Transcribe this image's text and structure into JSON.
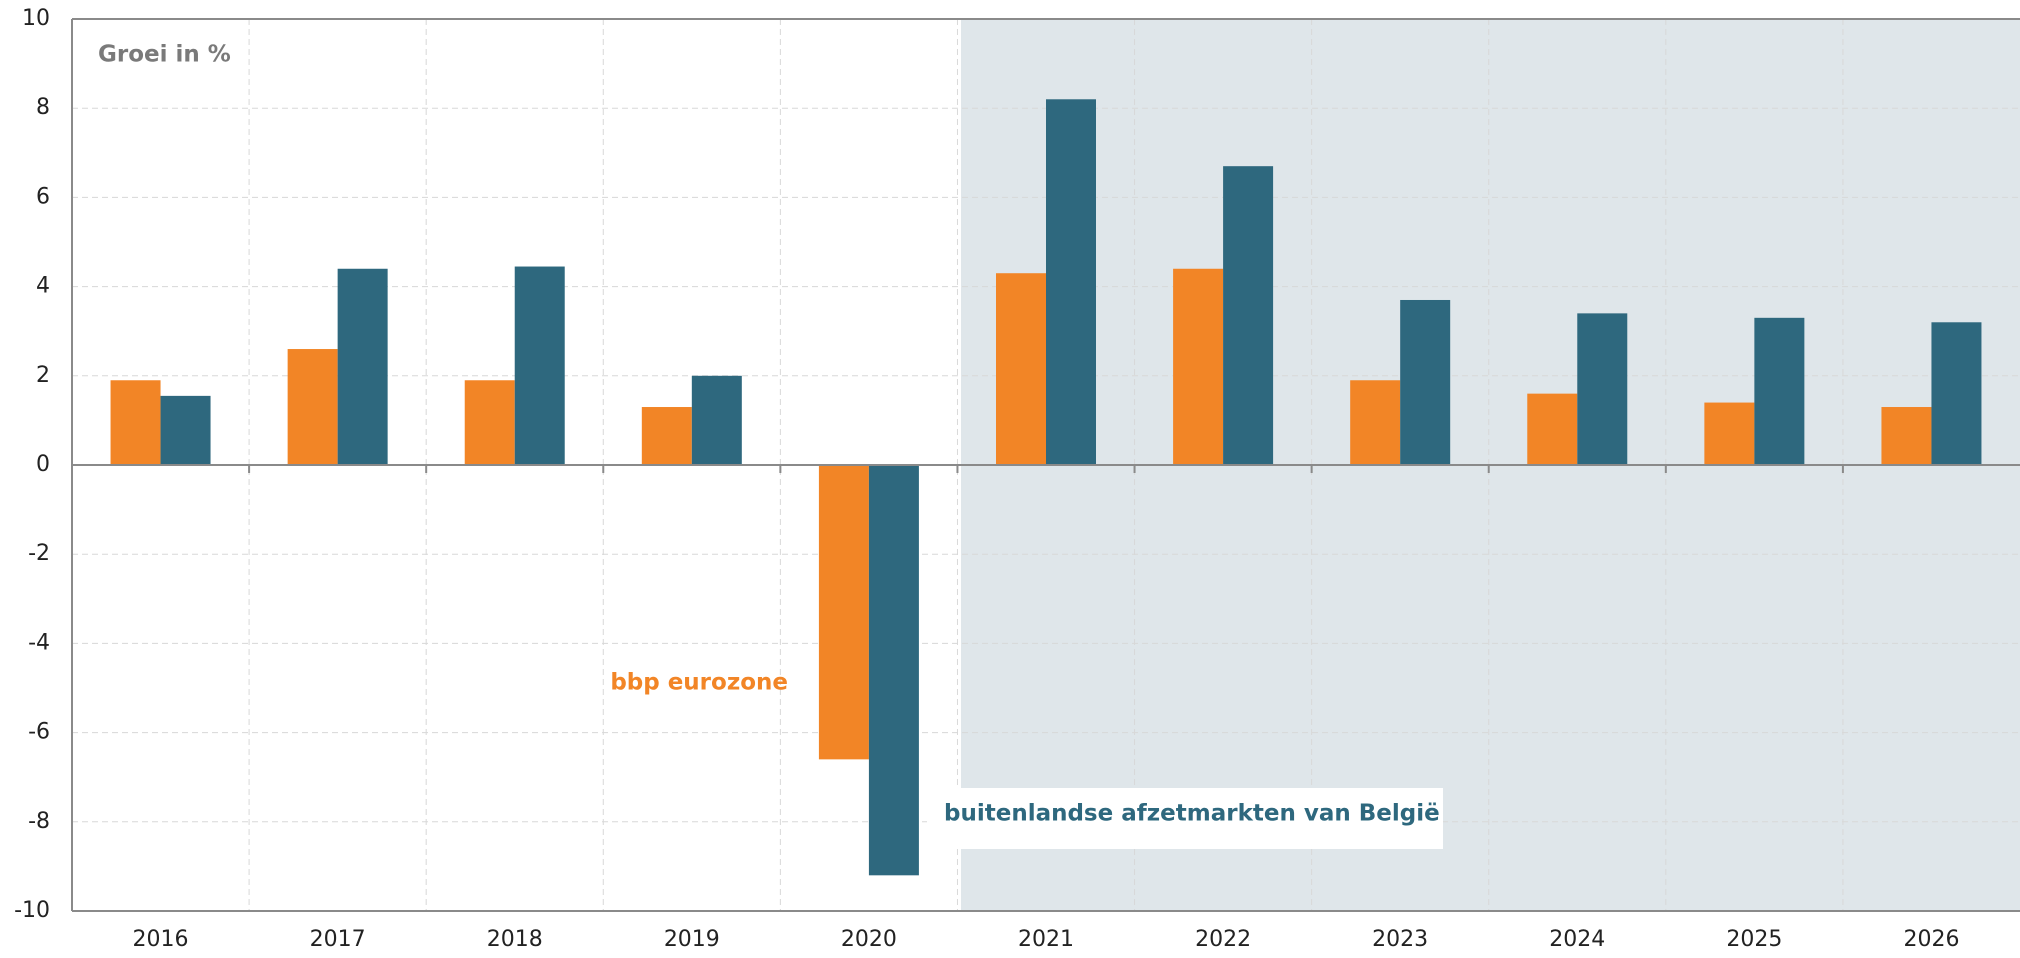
{
  "chart_data": {
    "type": "bar",
    "annotation": "Groei in %",
    "categories": [
      "2016",
      "2017",
      "2018",
      "2019",
      "2020",
      "2021",
      "2022",
      "2023",
      "2024",
      "2025",
      "2026"
    ],
    "series": [
      {
        "name": "bbp eurozone",
        "color": "#f28526",
        "values": [
          1.9,
          2.6,
          1.9,
          1.3,
          -6.6,
          4.3,
          4.4,
          1.9,
          1.6,
          1.4,
          1.3
        ]
      },
      {
        "name": "buitenlandse afzetmarkten van België",
        "color": "#2e687e",
        "values": [
          1.55,
          4.4,
          4.45,
          2.0,
          -9.2,
          8.2,
          6.7,
          3.7,
          3.4,
          3.3,
          3.2
        ]
      }
    ],
    "ylim": [
      -10,
      10
    ],
    "yticks": [
      -10,
      -8,
      -6,
      -4,
      -2,
      0,
      2,
      4,
      6,
      8,
      10
    ],
    "grid": true
  }
}
